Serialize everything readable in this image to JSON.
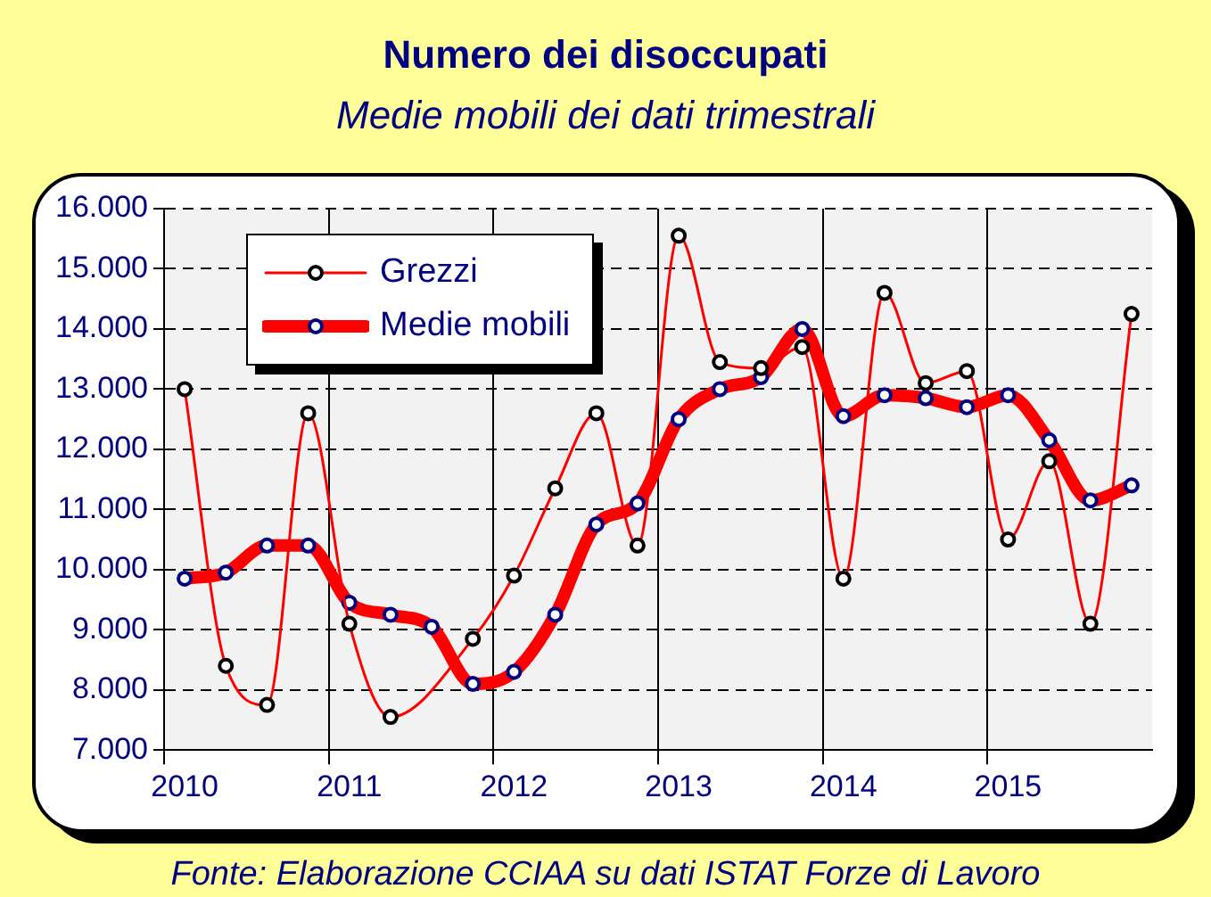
{
  "chart_data": {
    "type": "line",
    "title": "Numero dei disoccupati",
    "subtitle": "Medie mobili dei dati trimestrali",
    "categories": [
      "2010",
      null,
      null,
      null,
      "2011",
      null,
      null,
      null,
      "2012",
      null,
      null,
      null,
      "2013",
      null,
      null,
      null,
      "2014",
      null,
      null,
      null,
      "2015",
      null,
      null,
      null
    ],
    "series": [
      {
        "name": "Grezzi",
        "color": "#ff0000",
        "values": [
          13000,
          8400,
          7750,
          12600,
          9100,
          7550,
          null,
          8850,
          9900,
          11350,
          12600,
          10400,
          15550,
          13450,
          13350,
          13700,
          9850,
          14600,
          13100,
          13300,
          10500,
          11800,
          9100,
          14250
        ]
      },
      {
        "name": "Medie mobili",
        "color": "#ff0000",
        "values": [
          9850,
          9950,
          10400,
          10400,
          9450,
          9250,
          9050,
          8100,
          8300,
          9250,
          10750,
          11100,
          12500,
          13000,
          13200,
          14000,
          12550,
          12900,
          12850,
          12700,
          12900,
          12150,
          11150,
          11400
        ]
      }
    ],
    "ylim": [
      7000,
      16000
    ],
    "yticks": [
      {
        "value": 7000,
        "label": "7.000"
      },
      {
        "value": 8000,
        "label": "8.000"
      },
      {
        "value": 9000,
        "label": "9.000"
      },
      {
        "value": 10000,
        "label": "10.000"
      },
      {
        "value": 11000,
        "label": "11.000"
      },
      {
        "value": 12000,
        "label": "12.000"
      },
      {
        "value": 13000,
        "label": "13.000"
      },
      {
        "value": 14000,
        "label": "14.000"
      },
      {
        "value": 15000,
        "label": "15.000"
      },
      {
        "value": 16000,
        "label": "16.000"
      }
    ],
    "grid": true,
    "legend": "top left",
    "marker": "circle",
    "annotations": [
      "Fonte: Elaborazione CCIAA su dati ISTAT Forze di Lavoro"
    ]
  }
}
